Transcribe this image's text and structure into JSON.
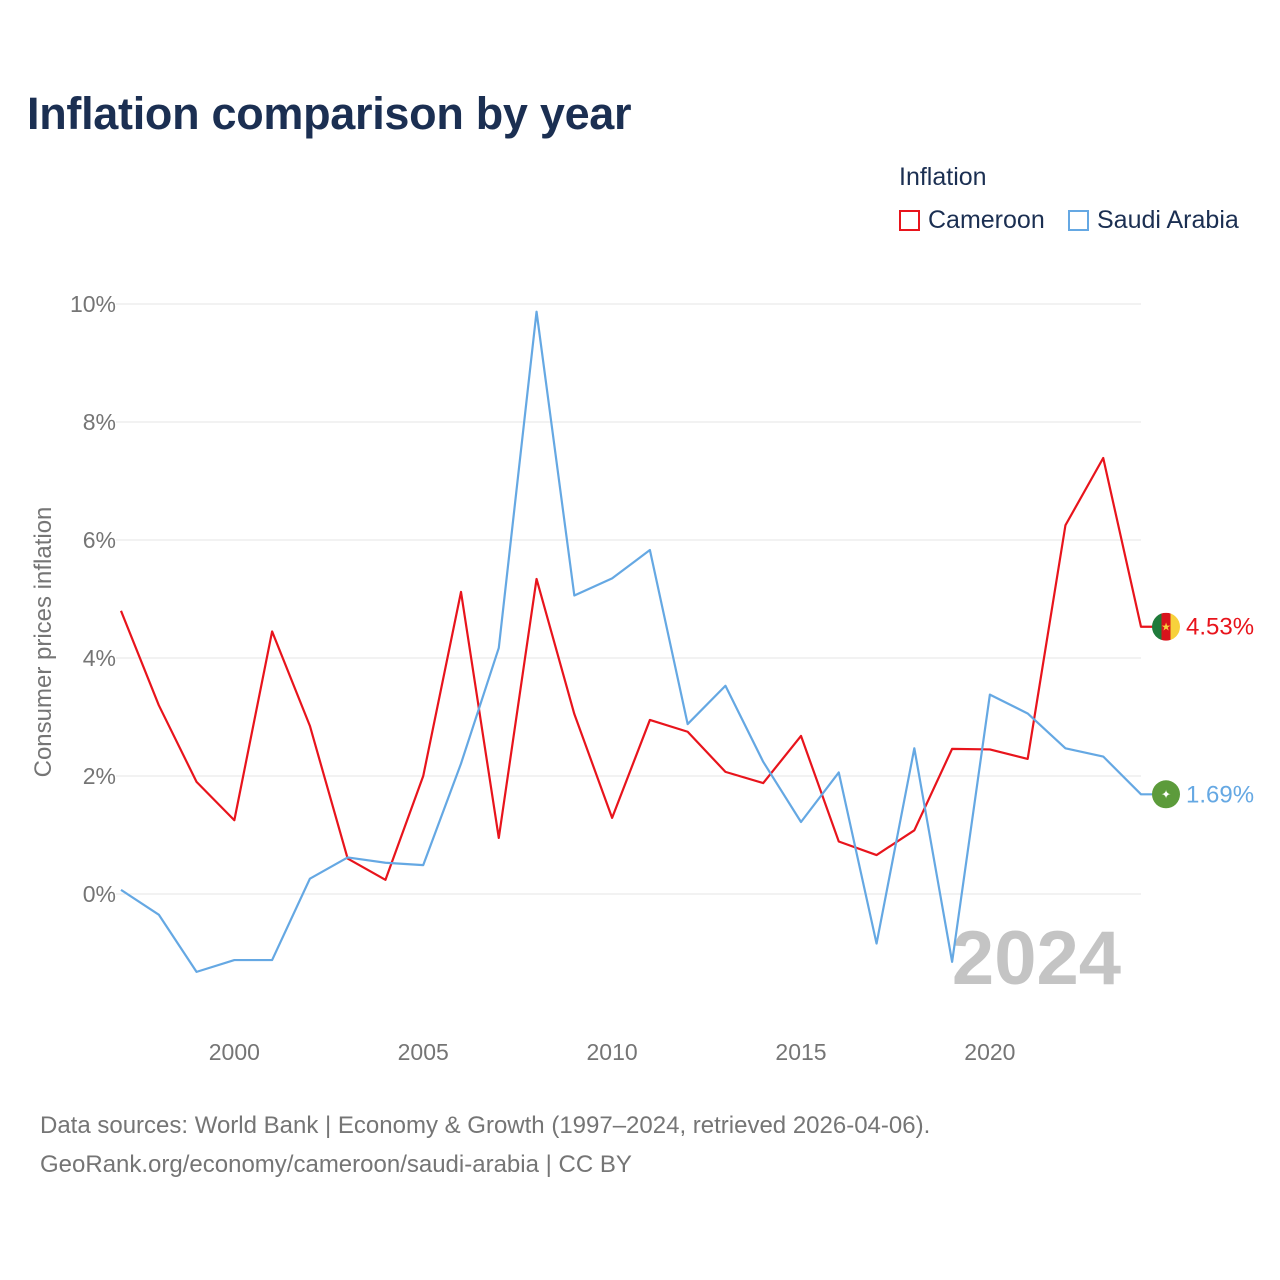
{
  "title": "Inflation comparison by year",
  "legend": {
    "title": "Inflation",
    "items": [
      {
        "label": "Cameroon",
        "color": "#e8141c"
      },
      {
        "label": "Saudi Arabia",
        "color": "#65a8e3"
      }
    ]
  },
  "year_watermark": "2024",
  "footer": {
    "line1": "Data sources: World Bank | Economy & Growth (1997–2024, retrieved 2026-04-06).",
    "line2": "GeoRank.org/economy/cameroon/saudi-arabia | CC BY"
  },
  "chart_data": {
    "type": "line",
    "title": "Inflation comparison by year",
    "xlabel": "",
    "ylabel": "Consumer prices inflation",
    "x": [
      1997,
      1998,
      1999,
      2000,
      2001,
      2002,
      2003,
      2004,
      2005,
      2006,
      2007,
      2008,
      2009,
      2010,
      2011,
      2012,
      2013,
      2014,
      2015,
      2016,
      2017,
      2018,
      2019,
      2020,
      2021,
      2022,
      2023,
      2024
    ],
    "xlim": [
      1997,
      2024
    ],
    "ylim": [
      -2,
      10
    ],
    "xticks": [
      {
        "value": 2000,
        "label": "2000"
      },
      {
        "value": 2005,
        "label": "2005"
      },
      {
        "value": 2010,
        "label": "2010"
      },
      {
        "value": 2015,
        "label": "2015"
      },
      {
        "value": 2020,
        "label": "2020"
      }
    ],
    "yticks": [
      {
        "value": 0,
        "label": "0%"
      },
      {
        "value": 2,
        "label": "2%"
      },
      {
        "value": 4,
        "label": "4%"
      },
      {
        "value": 6,
        "label": "6%"
      },
      {
        "value": 8,
        "label": "8%"
      },
      {
        "value": 10,
        "label": "10%"
      }
    ],
    "grid": true,
    "series": [
      {
        "name": "Cameroon",
        "color": "#e8141c",
        "flag_icon": "cameroon-flag-icon",
        "end_label": "4.53%",
        "values": [
          4.8,
          3.2,
          1.9,
          1.25,
          4.45,
          2.85,
          0.6,
          0.24,
          2.0,
          5.12,
          0.95,
          5.34,
          3.05,
          1.29,
          2.95,
          2.75,
          2.07,
          1.88,
          2.68,
          0.89,
          0.66,
          1.08,
          2.46,
          2.45,
          2.29,
          6.25,
          7.39,
          4.53
        ]
      },
      {
        "name": "Saudi Arabia",
        "color": "#65a8e3",
        "flag_icon": "saudi-arabia-flag-icon",
        "end_label": "1.69%",
        "values": [
          0.07,
          -0.35,
          -1.32,
          -1.12,
          -1.12,
          0.26,
          0.62,
          0.53,
          0.49,
          2.21,
          4.17,
          9.87,
          5.06,
          5.35,
          5.83,
          2.88,
          3.53,
          2.24,
          1.22,
          2.06,
          -0.84,
          2.47,
          -1.15,
          3.38,
          3.06,
          2.47,
          2.33,
          1.69
        ]
      }
    ]
  }
}
